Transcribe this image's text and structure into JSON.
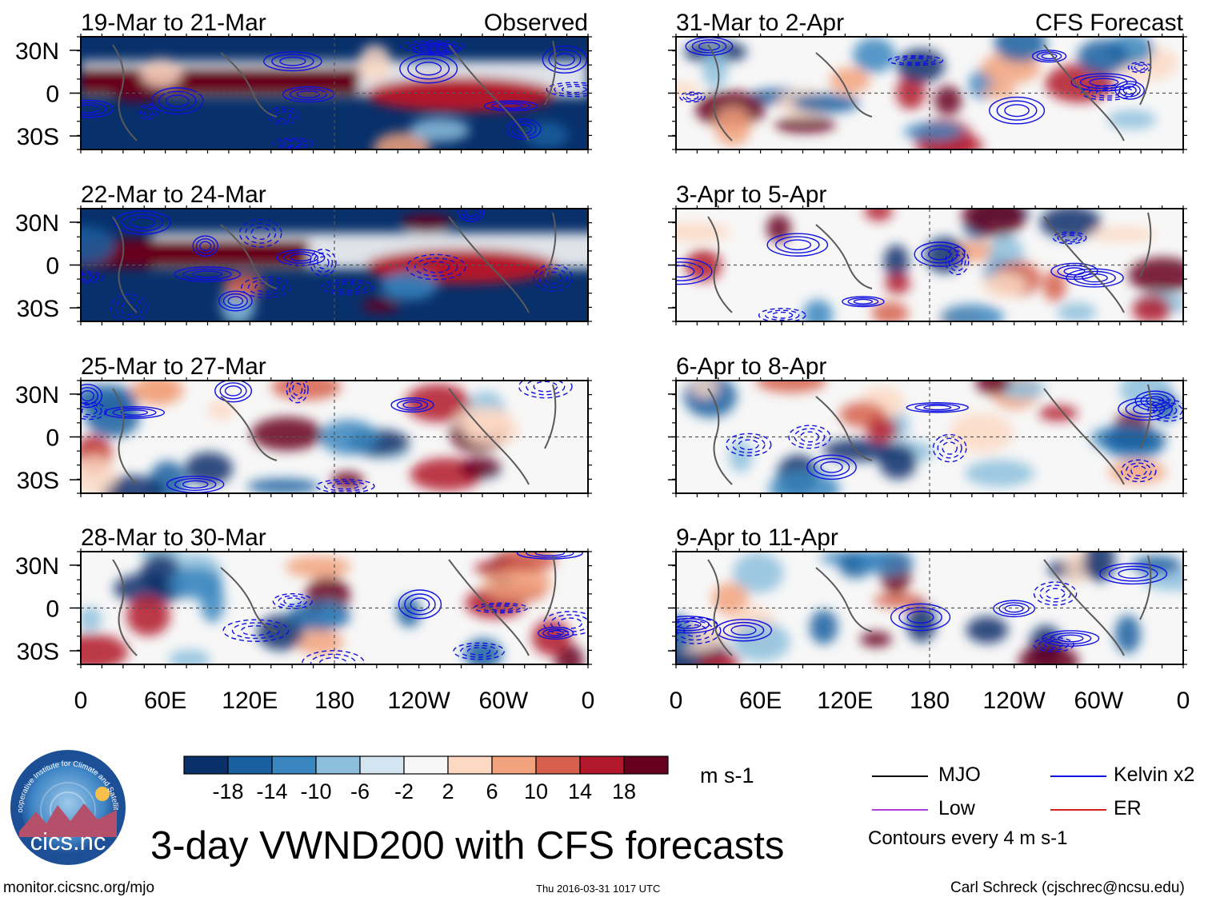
{
  "chart_data": {
    "type": "heatmap",
    "variable": "VWND200",
    "units": "m s-1",
    "title": "3-day VWND200 with CFS forecasts",
    "x_ticks": [
      "0",
      "60E",
      "120E",
      "180",
      "120W",
      "60W",
      "0"
    ],
    "y_ticks": [
      "30N",
      "0",
      "30S"
    ],
    "xlim": [
      0,
      360
    ],
    "ylim": [
      -40,
      40
    ],
    "panels": [
      {
        "date_label": "19-Mar to 21-Mar",
        "source_label": "Observed",
        "column": "observed"
      },
      {
        "date_label": "22-Mar to 24-Mar",
        "source_label": "",
        "column": "observed"
      },
      {
        "date_label": "25-Mar to 27-Mar",
        "source_label": "",
        "column": "observed"
      },
      {
        "date_label": "28-Mar to 30-Mar",
        "source_label": "",
        "column": "observed"
      },
      {
        "date_label": "31-Mar to 2-Apr",
        "source_label": "CFS Forecast",
        "column": "forecast"
      },
      {
        "date_label": "3-Apr to 5-Apr",
        "source_label": "",
        "column": "forecast"
      },
      {
        "date_label": "6-Apr to 8-Apr",
        "source_label": "",
        "column": "forecast"
      },
      {
        "date_label": "9-Apr to 11-Apr",
        "source_label": "",
        "column": "forecast"
      }
    ],
    "colorbar": {
      "levels": [
        -18,
        -14,
        -10,
        -6,
        -2,
        2,
        6,
        10,
        14,
        18
      ],
      "level_labels": [
        "-18",
        "-14",
        "-10",
        "-6",
        "-2",
        "2",
        "6",
        "10",
        "14",
        "18"
      ],
      "colors": [
        "#08306b",
        "#1a5fa0",
        "#3a86c0",
        "#8dbfdd",
        "#d2e5f1",
        "#f7f7f7",
        "#fdd9c4",
        "#f2a27c",
        "#d6604d",
        "#b2182b",
        "#67001f"
      ],
      "units_label": "m s-1"
    },
    "legend": [
      {
        "label": "MJO",
        "color": "#000000"
      },
      {
        "label": "Kelvin x2",
        "color": "#1010e0"
      },
      {
        "label": "Low",
        "color": "#b03cdc"
      },
      {
        "label": "ER",
        "color": "#d42020"
      }
    ],
    "contour_note": "Contours every 4 m s-1"
  },
  "footer": {
    "website": "monitor.cicsnc.org/mjo",
    "timestamp": "Thu 2016-03-31 1017 UTC",
    "credit": "Carl Schreck (cjschrec@ncsu.edu)"
  },
  "logo": {
    "name": "cics.nc",
    "ring_text": "Cooperative Institute for Climate and Satellites"
  }
}
